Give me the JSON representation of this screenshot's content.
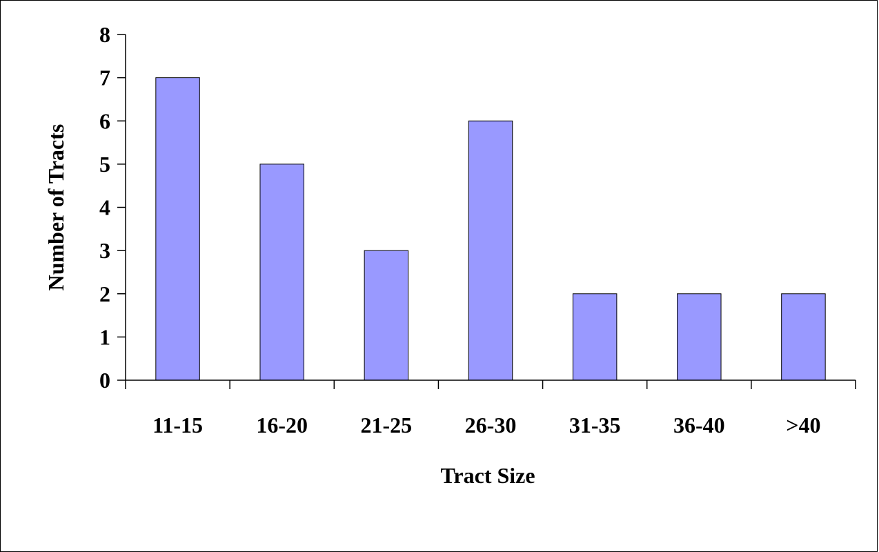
{
  "chart_data": {
    "type": "bar",
    "title": "",
    "xlabel": "Tract Size",
    "ylabel": "Number of Tracts",
    "categories": [
      "11-15",
      "16-20",
      "21-25",
      "26-30",
      "31-35",
      "36-40",
      ">40"
    ],
    "values": [
      7,
      5,
      3,
      6,
      2,
      2,
      2
    ],
    "ylim": [
      0,
      8
    ],
    "yticks": [
      "0",
      "1",
      "2",
      "3",
      "4",
      "5",
      "6",
      "7",
      "8"
    ],
    "grid": false,
    "legend": "none",
    "bar_color": "#9999ff"
  }
}
